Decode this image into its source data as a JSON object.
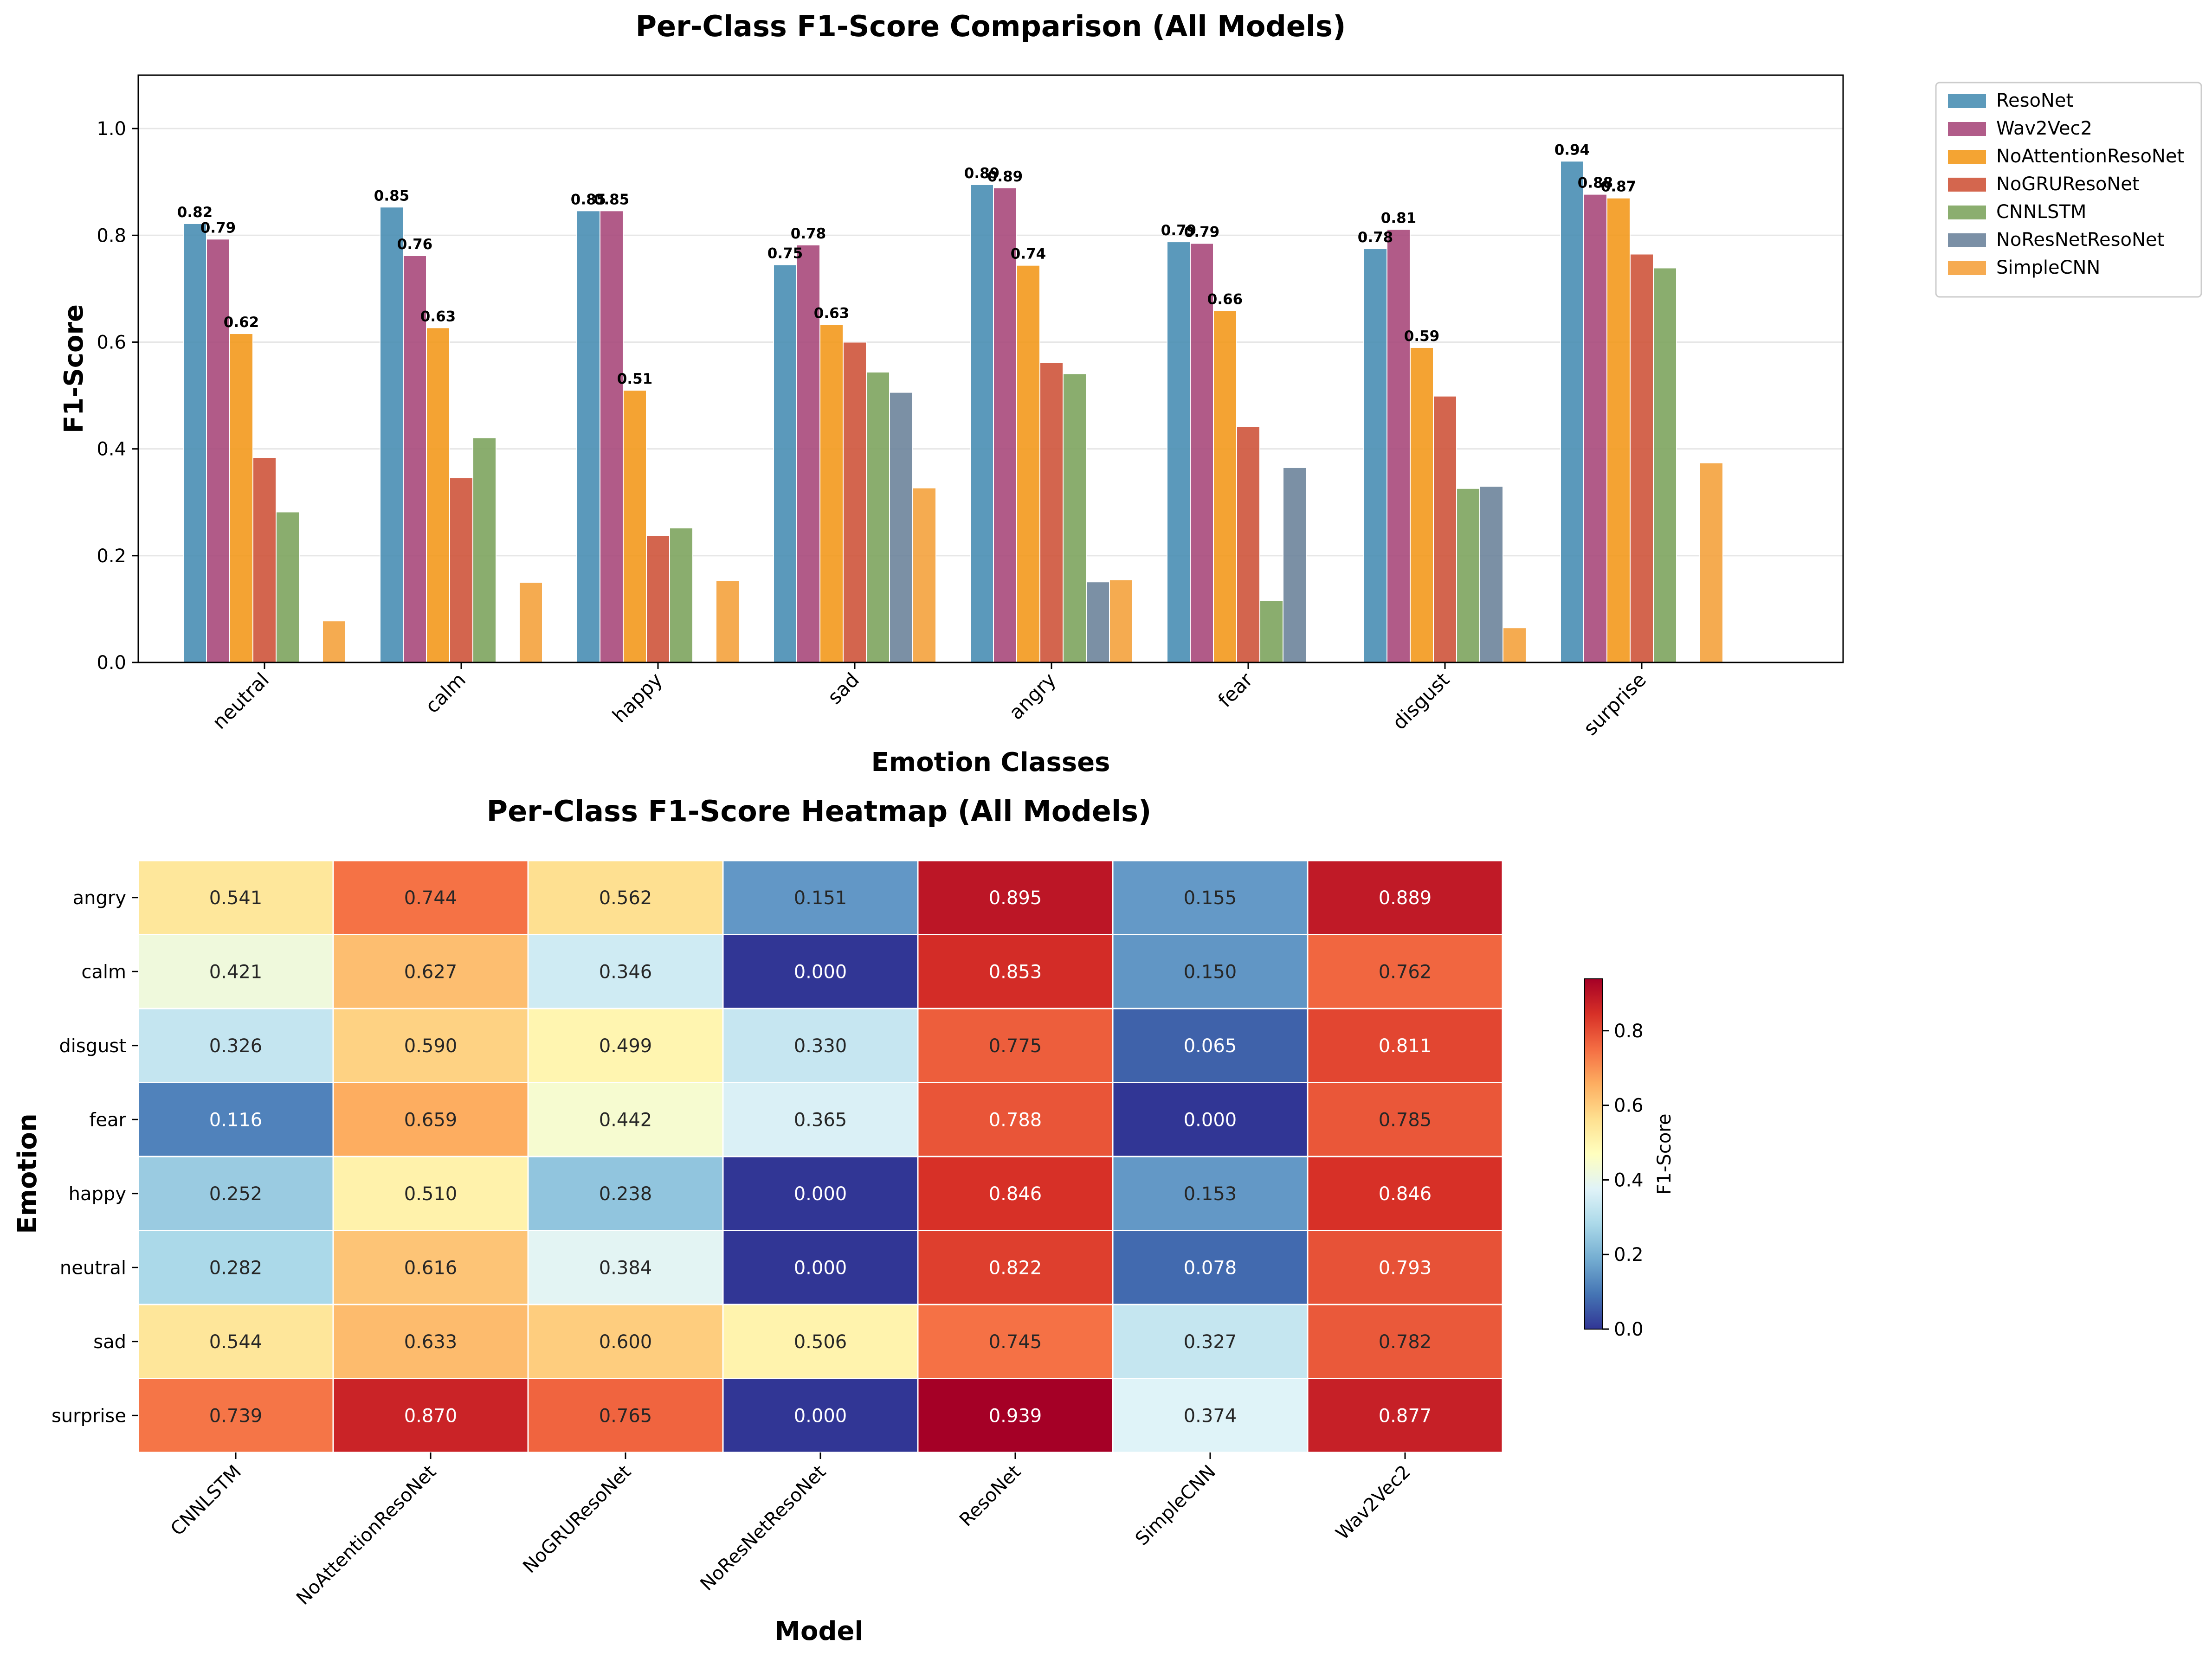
{
  "chart_data": [
    {
      "type": "bar",
      "title": "Per-Class F1-Score Comparison (All Models)",
      "xlabel": "Emotion Classes",
      "ylabel": "F1-Score",
      "ylim": [
        0,
        1.1
      ],
      "yticks": [
        "0.0",
        "0.2",
        "0.4",
        "0.6",
        "0.8",
        "1.0"
      ],
      "grid": "horizontal",
      "legend_position": "outside-top-right",
      "categories": [
        "neutral",
        "calm",
        "happy",
        "sad",
        "angry",
        "fear",
        "disgust",
        "surprise"
      ],
      "series": [
        {
          "name": "ResoNet",
          "color": "#4a8fb4",
          "values": [
            0.822,
            0.853,
            0.846,
            0.745,
            0.895,
            0.788,
            0.775,
            0.939
          ],
          "labels": [
            "0.82",
            "0.85",
            "0.85",
            "0.75",
            "0.89",
            "0.79",
            "0.78",
            "0.94"
          ]
        },
        {
          "name": "Wav2Vec2",
          "color": "#a94a7c",
          "values": [
            0.793,
            0.762,
            0.846,
            0.782,
            0.889,
            0.785,
            0.811,
            0.877
          ],
          "labels": [
            "0.79",
            "0.76",
            "0.85",
            "0.78",
            "0.89",
            "0.79",
            "0.81",
            "0.88"
          ]
        },
        {
          "name": "NoAttentionResoNet",
          "color": "#f39a1d",
          "values": [
            0.616,
            0.627,
            0.51,
            0.633,
            0.744,
            0.659,
            0.59,
            0.87
          ],
          "labels": [
            "0.62",
            "0.63",
            "0.51",
            "0.63",
            "0.74",
            "0.66",
            "0.59",
            "0.87"
          ]
        },
        {
          "name": "NoGRUResoNet",
          "color": "#cf553b",
          "values": [
            0.384,
            0.346,
            0.238,
            0.6,
            0.562,
            0.442,
            0.499,
            0.765
          ]
        },
        {
          "name": "CNNLSTM",
          "color": "#7ea55f",
          "values": [
            0.282,
            0.421,
            0.252,
            0.544,
            0.541,
            0.116,
            0.326,
            0.739
          ]
        },
        {
          "name": "NoResNetResoNet",
          "color": "#6d849c",
          "values": [
            0.0,
            0.0,
            0.0,
            0.506,
            0.151,
            0.365,
            0.33,
            0.0
          ]
        },
        {
          "name": "SimpleCNN",
          "color": "#f5a23e",
          "values": [
            0.078,
            0.15,
            0.153,
            0.327,
            0.155,
            0.0,
            0.065,
            0.374
          ]
        }
      ]
    },
    {
      "type": "heatmap",
      "title": "Per-Class F1-Score Heatmap (All Models)",
      "xlabel": "Model",
      "ylabel": "Emotion",
      "colorbar_label": "F1-Score",
      "colormap": "RdYlBu_r",
      "vmin": 0,
      "vmax": 0.939,
      "colorbar_ticks": [
        "0.0",
        "0.2",
        "0.4",
        "0.6",
        "0.8"
      ],
      "columns": [
        "CNNLSTM",
        "NoAttentionResoNet",
        "NoGRUResoNet",
        "NoResNetResoNet",
        "ResoNet",
        "SimpleCNN",
        "Wav2Vec2"
      ],
      "rows": [
        "angry",
        "calm",
        "disgust",
        "fear",
        "happy",
        "neutral",
        "sad",
        "surprise"
      ],
      "values": [
        [
          0.541,
          0.744,
          0.562,
          0.151,
          0.895,
          0.155,
          0.889
        ],
        [
          0.421,
          0.627,
          0.346,
          0.0,
          0.853,
          0.15,
          0.762
        ],
        [
          0.326,
          0.59,
          0.499,
          0.33,
          0.775,
          0.065,
          0.811
        ],
        [
          0.116,
          0.659,
          0.442,
          0.365,
          0.788,
          0.0,
          0.785
        ],
        [
          0.252,
          0.51,
          0.238,
          0.0,
          0.846,
          0.153,
          0.846
        ],
        [
          0.282,
          0.616,
          0.384,
          0.0,
          0.822,
          0.078,
          0.793
        ],
        [
          0.544,
          0.633,
          0.6,
          0.506,
          0.745,
          0.327,
          0.782
        ],
        [
          0.739,
          0.87,
          0.765,
          0.0,
          0.939,
          0.374,
          0.877
        ]
      ],
      "cell_labels": [
        [
          "0.541",
          "0.744",
          "0.562",
          "0.151",
          "0.895",
          "0.155",
          "0.889"
        ],
        [
          "0.421",
          "0.627",
          "0.346",
          "0.000",
          "0.853",
          "0.150",
          "0.762"
        ],
        [
          "0.326",
          "0.590",
          "0.499",
          "0.330",
          "0.775",
          "0.065",
          "0.811"
        ],
        [
          "0.116",
          "0.659",
          "0.442",
          "0.365",
          "0.788",
          "0.000",
          "0.785"
        ],
        [
          "0.252",
          "0.510",
          "0.238",
          "0.000",
          "0.846",
          "0.153",
          "0.846"
        ],
        [
          "0.282",
          "0.616",
          "0.384",
          "0.000",
          "0.822",
          "0.078",
          "0.793"
        ],
        [
          "0.544",
          "0.633",
          "0.600",
          "0.506",
          "0.745",
          "0.327",
          "0.782"
        ],
        [
          "0.739",
          "0.870",
          "0.765",
          "0.000",
          "0.939",
          "0.374",
          "0.877"
        ]
      ]
    }
  ]
}
